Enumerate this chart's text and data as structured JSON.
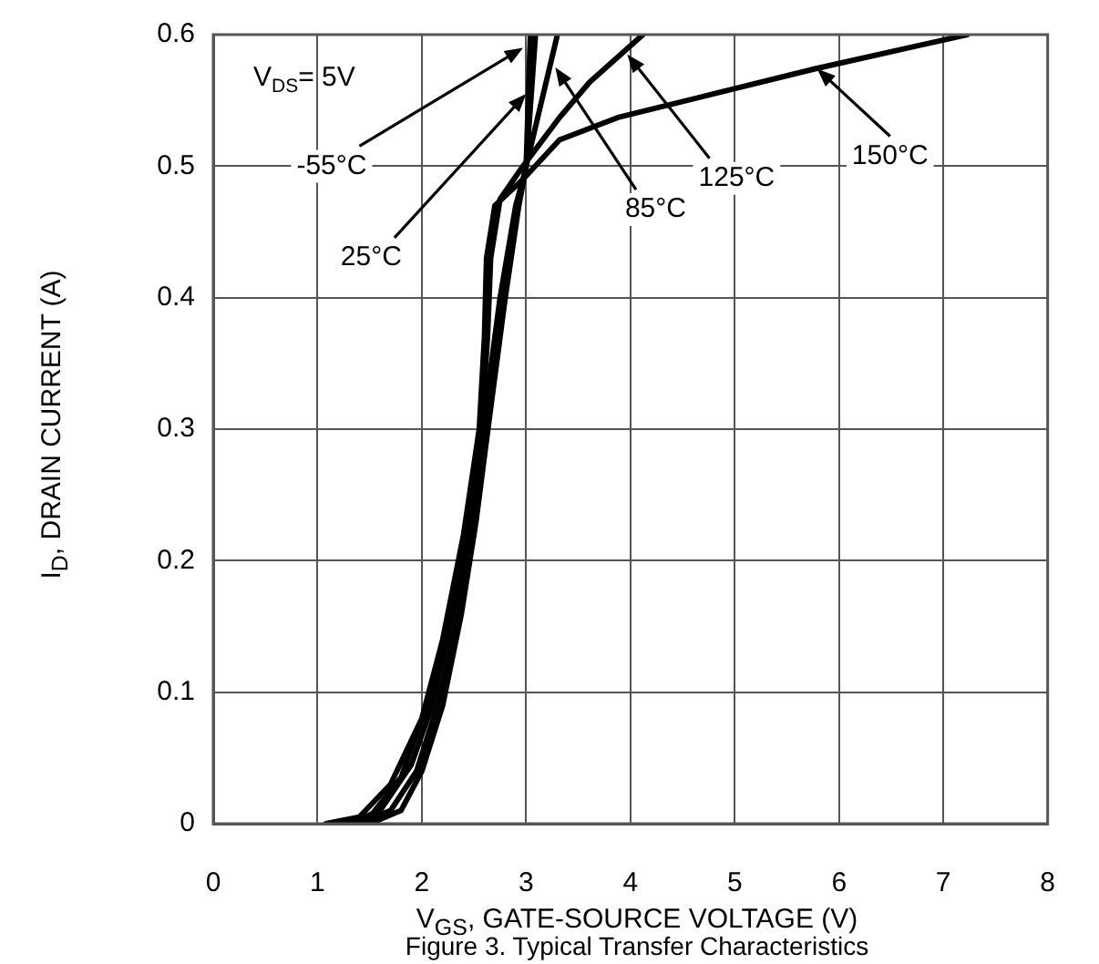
{
  "chart_data": {
    "type": "line",
    "xlabel": "V$_{GS}$, GATE-SOURCE VOLTAGE (V)",
    "ylabel": "I$_{D}$, DRAIN CURRENT (A)",
    "xlim": [
      0,
      8
    ],
    "xticks": [
      0,
      1,
      2,
      3,
      4,
      5,
      6,
      7,
      8
    ],
    "ylim": [
      0,
      0.6
    ],
    "yticks": [
      0,
      0.1,
      0.2,
      0.3,
      0.4,
      0.5,
      0.6
    ],
    "grid": true,
    "legend": false,
    "marker": "none",
    "line_style": "solid",
    "series": [
      {
        "color": "#000000",
        "x": [
          1.08,
          1.4,
          1.7,
          2.0,
          2.2,
          2.4,
          2.55,
          2.6,
          2.62,
          2.7,
          2.97,
          3.32,
          3.88,
          4.8,
          5.77,
          7.23
        ],
        "values": [
          0,
          0.005,
          0.03,
          0.08,
          0.14,
          0.22,
          0.3,
          0.37,
          0.43,
          0.47,
          0.49,
          0.52,
          0.537,
          0.555,
          0.574,
          0.6
        ]
      },
      {
        "color": "#000000",
        "x": [
          1.2,
          1.5,
          1.8,
          2.05,
          2.25,
          2.42,
          2.57,
          2.63,
          2.66,
          2.75,
          2.97,
          3.32,
          3.61,
          4.12
        ],
        "values": [
          0,
          0.005,
          0.035,
          0.09,
          0.15,
          0.22,
          0.3,
          0.37,
          0.43,
          0.475,
          0.5,
          0.537,
          0.564,
          0.6
        ]
      },
      {
        "color": "#000000",
        "x": [
          1.3,
          1.6,
          1.9,
          2.1,
          2.3,
          2.47,
          2.6,
          2.75,
          2.9,
          2.97,
          3.15,
          3.3
        ],
        "values": [
          0,
          0.01,
          0.045,
          0.09,
          0.16,
          0.24,
          0.31,
          0.4,
          0.47,
          0.49,
          0.55,
          0.6
        ]
      },
      {
        "color": "#000000",
        "x": [
          1.4,
          1.7,
          1.95,
          2.15,
          2.35,
          2.5,
          2.62,
          2.78,
          2.92,
          3.0,
          3.09
        ],
        "values": [
          0,
          0.01,
          0.04,
          0.09,
          0.16,
          0.24,
          0.31,
          0.4,
          0.47,
          0.5,
          0.6
        ]
      },
      {
        "color": "#000000",
        "x": [
          1.5,
          1.8,
          2.0,
          2.2,
          2.38,
          2.52,
          2.65,
          2.8,
          2.93,
          3.0,
          3.04
        ],
        "values": [
          0,
          0.01,
          0.04,
          0.09,
          0.16,
          0.23,
          0.31,
          0.4,
          0.47,
          0.5,
          0.6
        ]
      }
    ],
    "annotations": [
      "V$_{DS}$= 5V",
      {
        "text": "-55°C",
        "x": 2.97,
        "y": 0.59
      },
      {
        "text": "25°C",
        "x": 3.0,
        "y": 0.555
      },
      {
        "text": "85°C",
        "x": 3.28,
        "y": 0.575
      },
      {
        "text": "125°C",
        "x": 3.97,
        "y": 0.585
      },
      {
        "text": "150°C",
        "x": 5.79,
        "y": 0.574
      },
      "Figure 3. Typical Transfer Characteristics"
    ]
  }
}
